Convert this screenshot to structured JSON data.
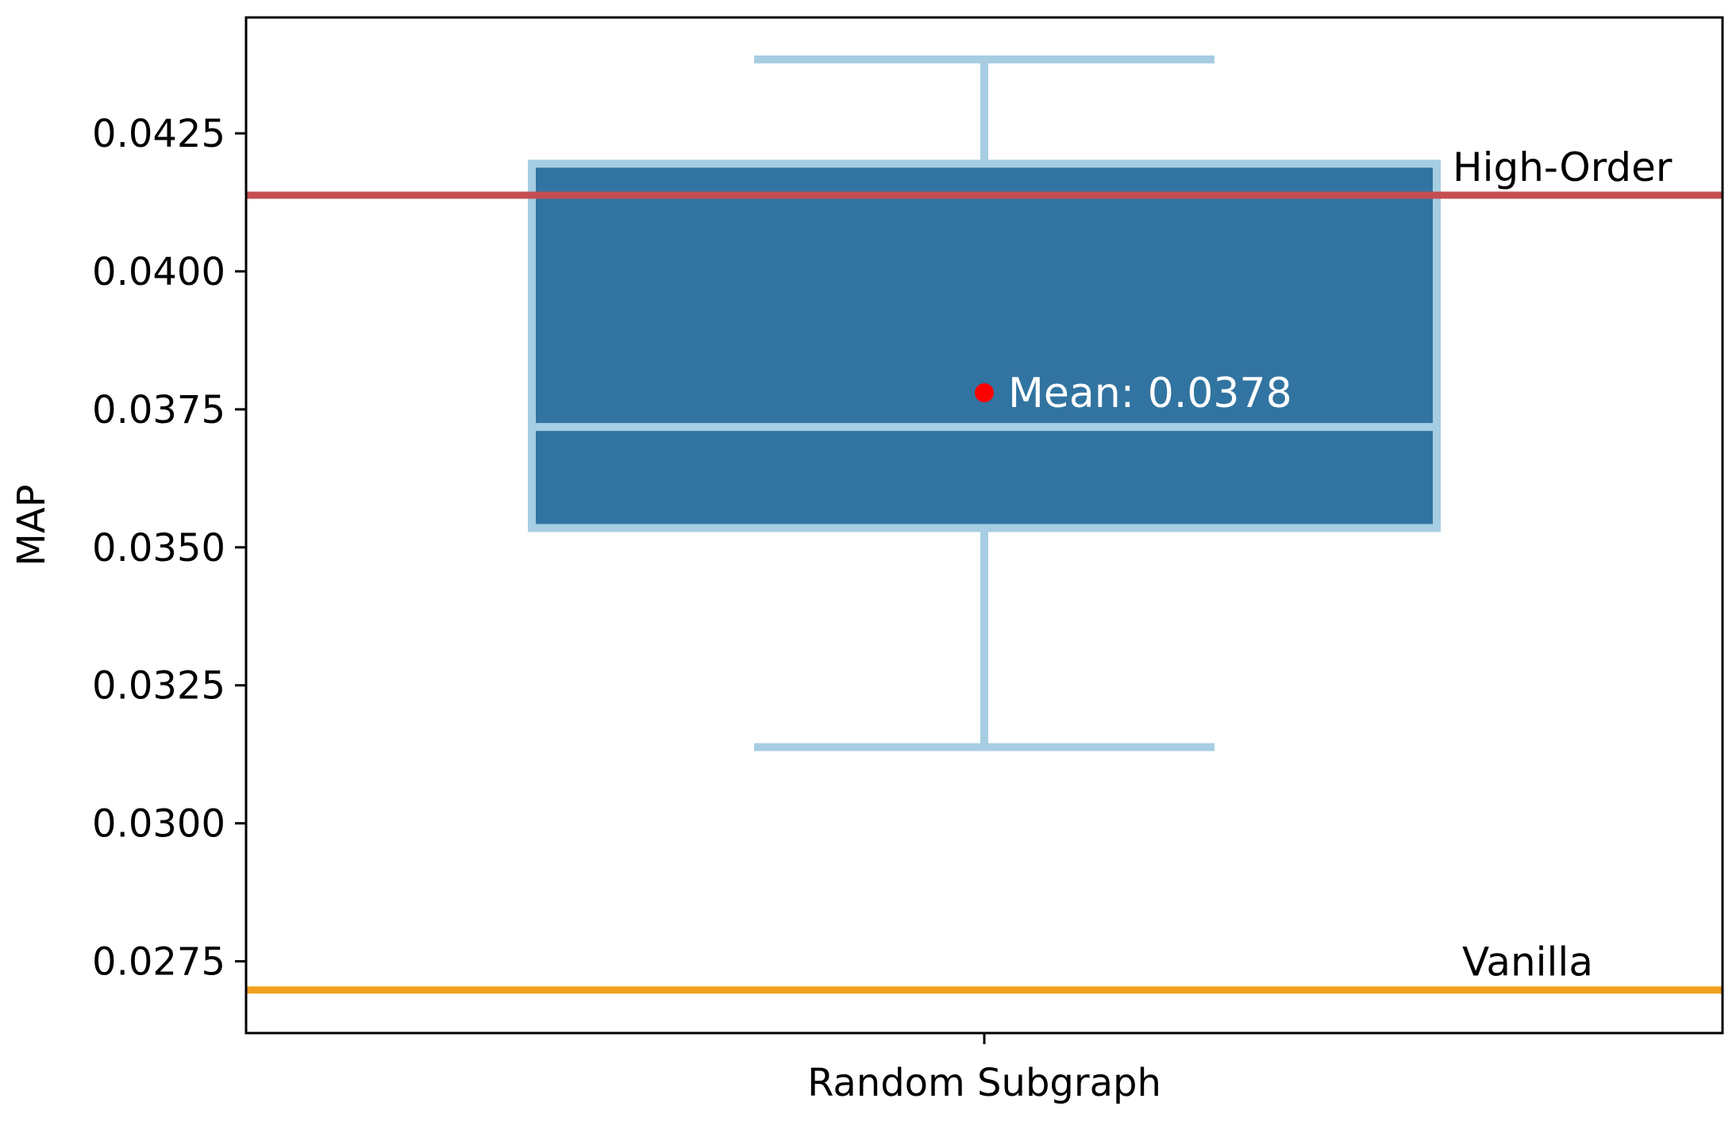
{
  "chart_data": {
    "type": "box",
    "title": "",
    "xlabel": "",
    "ylabel": "MAP",
    "categories": [
      "Random Subgraph"
    ],
    "ylim": [
      0.0262,
      0.0446
    ],
    "yticks": [
      "0.0275",
      "0.0300",
      "0.0325",
      "0.0350",
      "0.0375",
      "0.0400",
      "0.0425"
    ],
    "grid": false,
    "boxes": [
      {
        "category": "Random Subgraph",
        "whisker_low": 0.03138,
        "q1": 0.03535,
        "median": 0.03718,
        "q3": 0.04195,
        "whisker_high": 0.04384,
        "mean": 0.0378,
        "mean_label": "Mean: 0.0378"
      }
    ],
    "reference_lines": [
      {
        "label": "High-Order",
        "value": 0.04138,
        "color": "#c44e52"
      },
      {
        "label": "Vanilla",
        "value": 0.02698,
        "color": "#f0a01c"
      }
    ],
    "colors": {
      "box_fill": "#3274a1",
      "box_edge": "#a6cde2",
      "mean_marker": "#ff0000"
    }
  }
}
